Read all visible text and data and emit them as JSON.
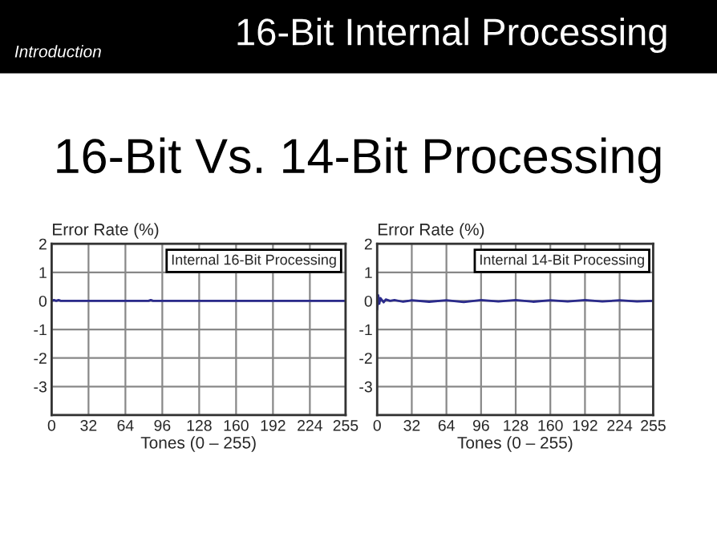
{
  "chart_data": [
    {
      "type": "line",
      "title": "16-Bit Internal Processing",
      "subtitle": "16-Bit Vs. 14-Bit Processing",
      "annotations": [
        "Introduction",
        "Internal 16-Bit Processing"
      ],
      "ylabel": "Error Rate (%)",
      "xlabel": "Tones (0 – 255)",
      "x": [
        0,
        2,
        4,
        6,
        8,
        16,
        32,
        64,
        84,
        86,
        88,
        96,
        128,
        160,
        192,
        224,
        255
      ],
      "series": [
        {
          "color": "#2b2b8c",
          "values": [
            0,
            0.03,
            0,
            0.03,
            0,
            0,
            0,
            0,
            0,
            0.03,
            0,
            0,
            0,
            0,
            0,
            0,
            0
          ]
        }
      ],
      "xlim": [
        0,
        255
      ],
      "xticks": [
        0,
        32,
        64,
        96,
        128,
        160,
        192,
        224,
        255
      ],
      "ylim": [
        -4,
        2
      ],
      "yticks": [
        {
          "value": -4,
          "label": null
        },
        -3,
        -2,
        -1,
        0,
        1,
        2
      ],
      "grid": true
    },
    {
      "type": "line",
      "annotations": [
        "Internal 14-Bit Processing"
      ],
      "ylabel": "Error Rate (%)",
      "xlabel": "Tones (0 – 255)",
      "x": [
        0,
        1,
        2,
        3,
        4,
        6,
        8,
        12,
        16,
        24,
        32,
        48,
        64,
        80,
        96,
        112,
        128,
        144,
        160,
        176,
        192,
        208,
        224,
        240,
        255
      ],
      "series": [
        {
          "color": "#2b2b8c",
          "values": [
            -0.3,
            0.2,
            -0.1,
            0.1,
            0.05,
            -0.05,
            0.05,
            0,
            0.03,
            -0.03,
            0.02,
            -0.03,
            0.02,
            -0.04,
            0.03,
            -0.02,
            0.03,
            -0.03,
            0.02,
            -0.02,
            0.03,
            -0.02,
            0.02,
            -0.02,
            0
          ]
        }
      ],
      "xlim": [
        0,
        255
      ],
      "xticks": [
        0,
        32,
        64,
        96,
        128,
        160,
        192,
        224,
        255
      ],
      "ylim": [
        -4,
        2
      ],
      "yticks": [
        {
          "value": -4,
          "label": null
        },
        -3,
        -2,
        -1,
        0,
        1,
        2
      ],
      "grid": true
    }
  ]
}
